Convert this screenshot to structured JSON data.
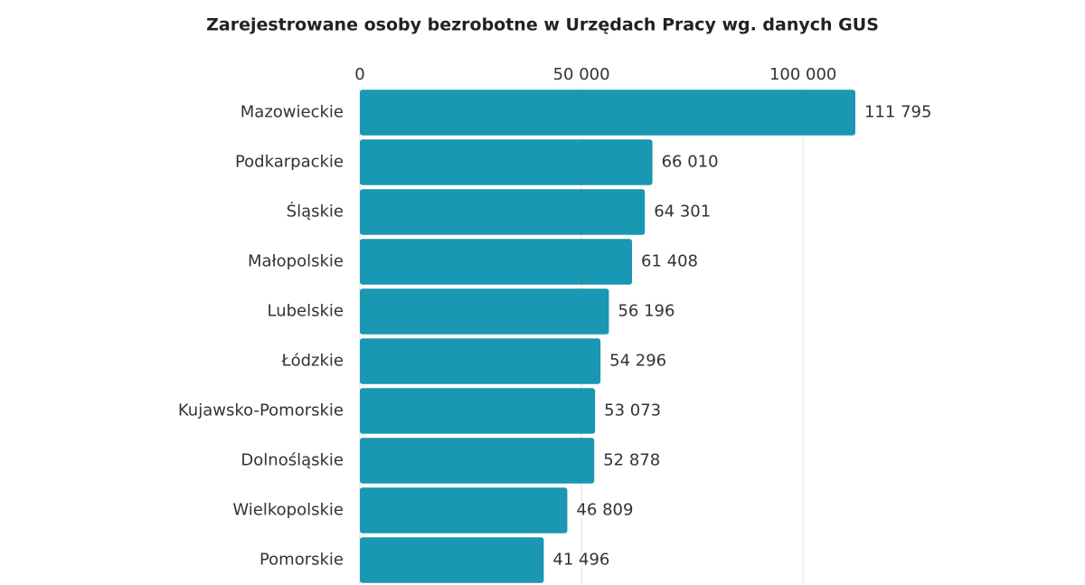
{
  "chart_data": {
    "type": "bar",
    "title": "Zarejestrowane osoby bezrobotne w Urzędach Pracy wg. danych GUS",
    "categories": [
      "Mazowieckie",
      "Podkarpackie",
      "Śląskie",
      "Małopolskie",
      "Lubelskie",
      "Łódzkie",
      "Kujawsko-Pomorskie",
      "Dolnośląskie",
      "Wielkopolskie",
      "Pomorskie"
    ],
    "values": [
      111795,
      66010,
      64301,
      61408,
      56196,
      54296,
      53073,
      52878,
      46809,
      41496
    ],
    "value_labels": [
      "111 795",
      "66 010",
      "64 301",
      "61 408",
      "56 196",
      "54 296",
      "53 073",
      "52 878",
      "46 809",
      "41 496"
    ],
    "color": "#1a97b2",
    "xlim": [
      0,
      112000
    ],
    "xticks": [
      0,
      {
        "value": 50000,
        "label": "50 000"
      },
      {
        "value": 100000,
        "label": "100 000"
      }
    ],
    "grid": true
  }
}
